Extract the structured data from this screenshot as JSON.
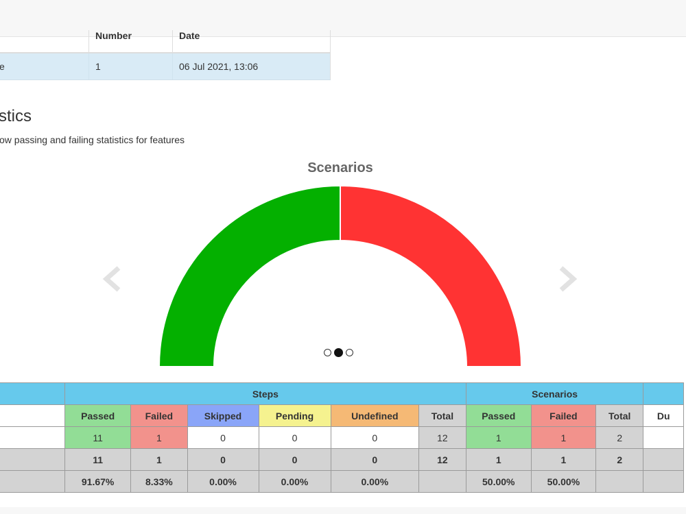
{
  "build_table": {
    "headers": [
      "",
      "Number",
      "Date"
    ],
    "row": [
      "e",
      "1",
      "06 Jul 2021, 13:06"
    ]
  },
  "statistics": {
    "heading": "stics",
    "subtitle": "ow passing and failing statistics for features"
  },
  "carousel": {
    "slide_count": 3,
    "active_index": 1,
    "prev_icon": "chevron-left-icon",
    "next_icon": "chevron-right-icon"
  },
  "chart_data": {
    "type": "pie",
    "subtype": "semi-circle-donut",
    "title": "Scenarios",
    "slices": [
      {
        "label": "Passed",
        "value": 1,
        "color": "#04b000"
      },
      {
        "label": "Failed",
        "value": 1,
        "color": "#ff3333"
      }
    ]
  },
  "stats_table": {
    "groups": [
      "",
      "Steps",
      "Scenarios",
      ""
    ],
    "columns": [
      "",
      "Passed",
      "Failed",
      "Skipped",
      "Pending",
      "Undefined",
      "Total",
      "Passed",
      "Failed",
      "Total",
      "Du"
    ],
    "data_row": [
      "",
      "11",
      "1",
      "0",
      "0",
      "0",
      "12",
      "1",
      "1",
      "2",
      ""
    ],
    "totals_row": [
      "",
      "11",
      "1",
      "0",
      "0",
      "0",
      "12",
      "1",
      "1",
      "2",
      ""
    ],
    "percent_row": [
      "",
      "91.67%",
      "8.33%",
      "0.00%",
      "0.00%",
      "0.00%",
      "",
      "50.00%",
      "50.00%",
      "",
      ""
    ]
  },
  "colors": {
    "header_blue": "#66c9ec",
    "passed": "#92dd96",
    "failed": "#f2928c",
    "skipped": "#8aa5f8",
    "pending": "#f5f28f",
    "undefined": "#f5b975",
    "total": "#d3d3d3"
  }
}
